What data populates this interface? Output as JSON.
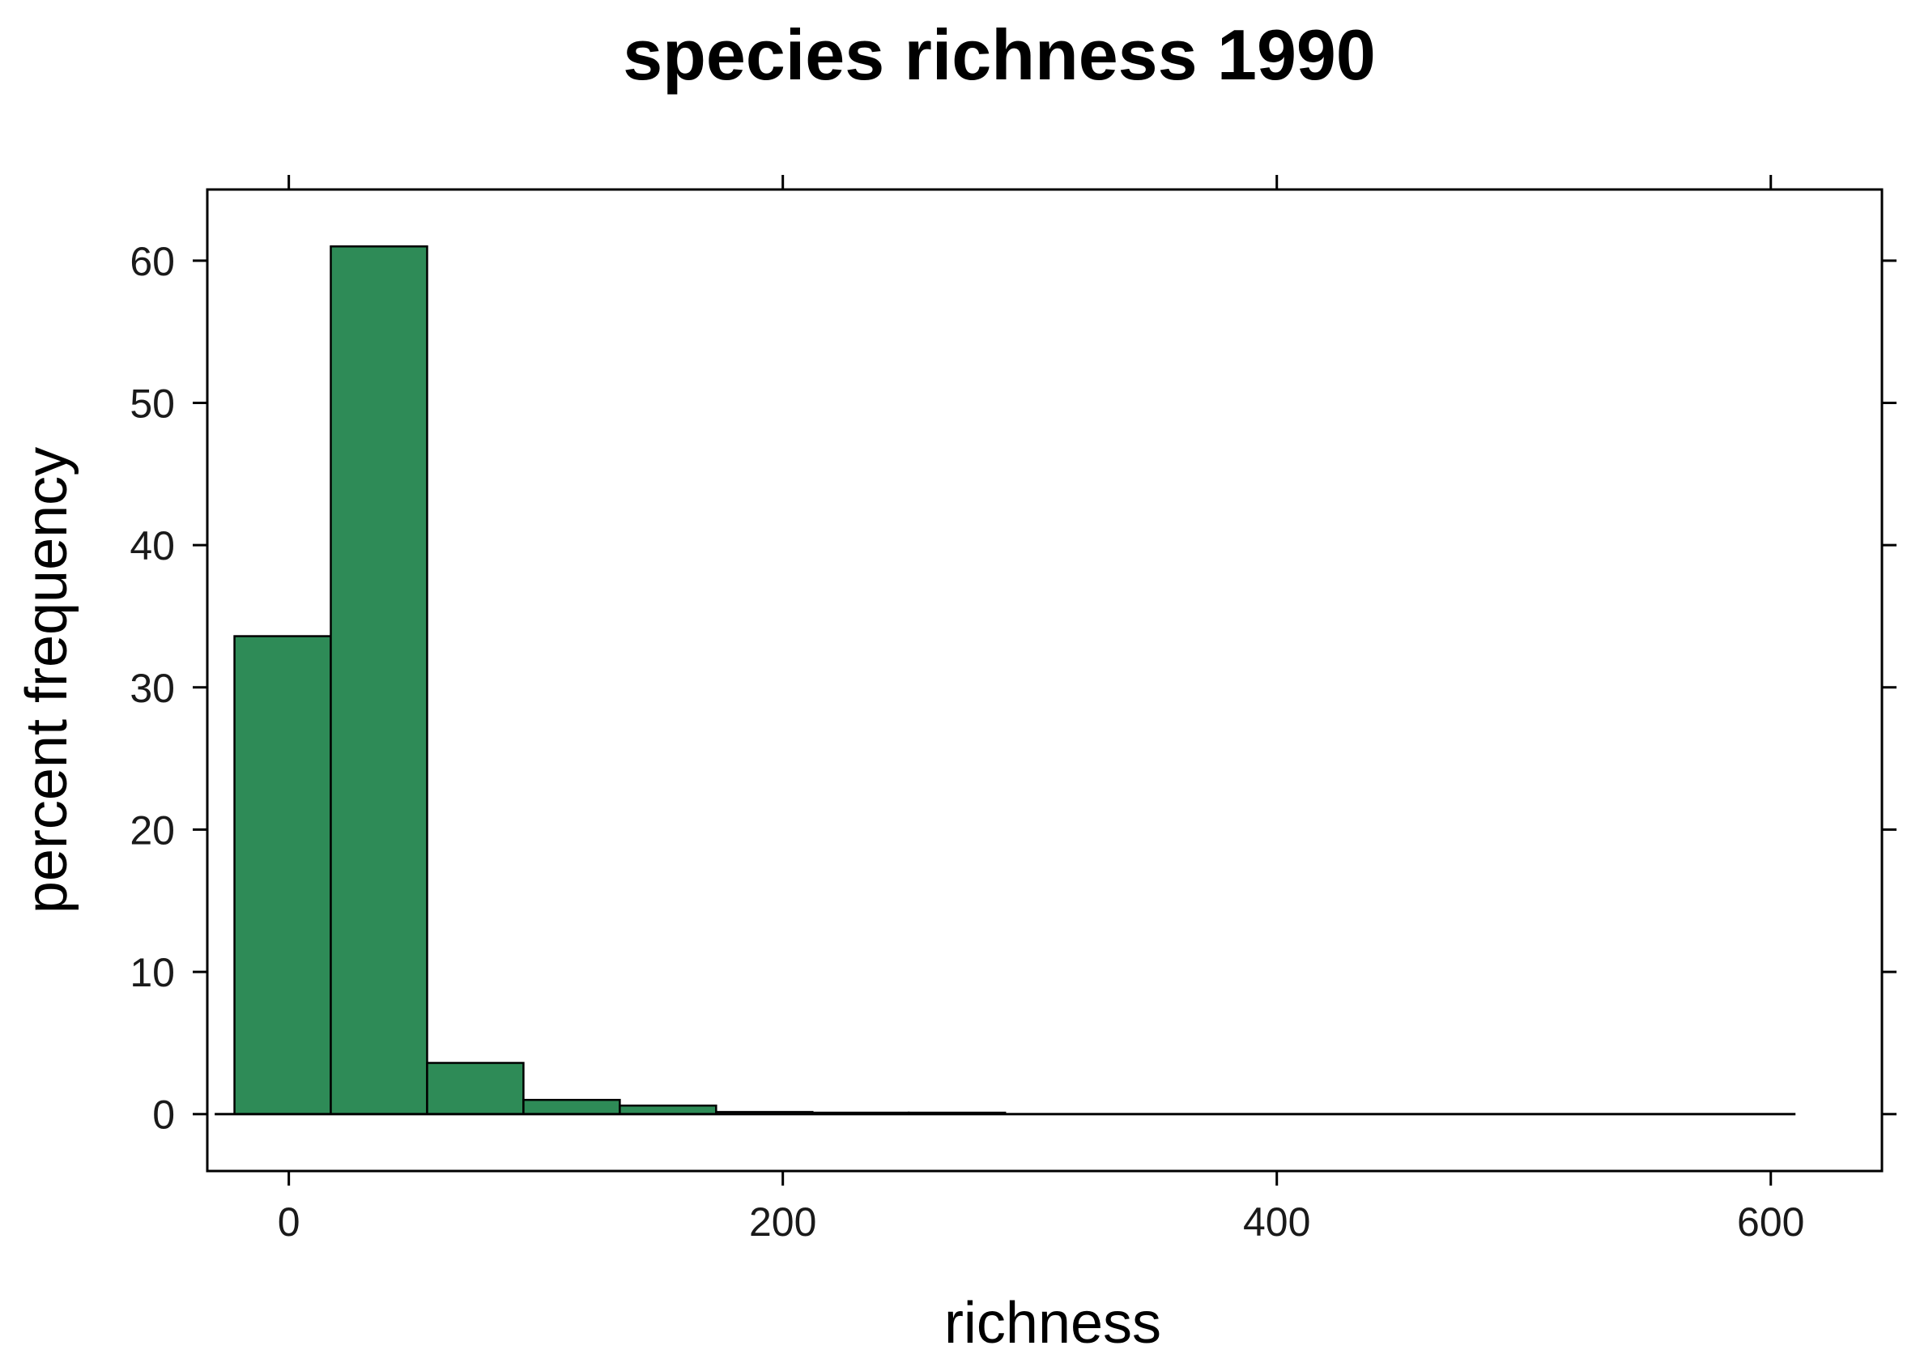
{
  "chart_data": {
    "type": "bar",
    "title": "species richness 1990",
    "xlabel": "richness",
    "ylabel": "percent frequency",
    "bar_color": "#2e8b57",
    "edge_color": "#000000",
    "xlim": [
      -33,
      645
    ],
    "ylim": [
      -4,
      65
    ],
    "xticks": [
      0,
      200,
      400,
      600
    ],
    "yticks": [
      0,
      10,
      20,
      30,
      40,
      50,
      60
    ],
    "baseline": [
      -30,
      610
    ],
    "bins": [
      {
        "x0": -22,
        "x1": 17,
        "value": 33.6
      },
      {
        "x0": 17,
        "x1": 56,
        "value": 61.0
      },
      {
        "x0": 56,
        "x1": 95,
        "value": 3.6
      },
      {
        "x0": 95,
        "x1": 134,
        "value": 1.0
      },
      {
        "x0": 134,
        "x1": 173,
        "value": 0.6
      },
      {
        "x0": 173,
        "x1": 212,
        "value": 0.15
      },
      {
        "x0": 212,
        "x1": 251,
        "value": 0.1
      },
      {
        "x0": 251,
        "x1": 290,
        "value": 0.1
      }
    ],
    "grid": false,
    "legend": "none"
  }
}
